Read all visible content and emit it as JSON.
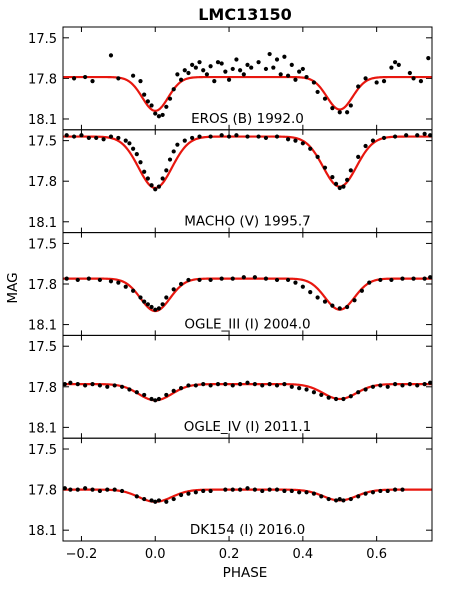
{
  "chart_data": {
    "type": "scatter",
    "title": "LMC13150",
    "xlabel": "PHASE",
    "ylabel": "MAG",
    "xlim": [
      -0.25,
      0.75
    ],
    "ylim_inverted": [
      18.18,
      17.42
    ],
    "x_ticks": [
      -0.2,
      0.0,
      0.2,
      0.4,
      0.6
    ],
    "x_tick_labels": [
      "−0.2",
      "0.0",
      "0.2",
      "0.4",
      "0.6"
    ],
    "y_ticks": [
      17.5,
      17.8,
      18.1
    ],
    "y_tick_labels": [
      "17.5",
      "17.8",
      "18.1"
    ],
    "grid": false,
    "model_color": "#e8170f",
    "point_color": "#000000",
    "panels": [
      {
        "label": "EROS (B) 1992.0",
        "model": {
          "base": 17.79,
          "depth1": 0.25,
          "width1": 0.035,
          "depth2": 0.24,
          "width2": 0.035
        },
        "points": [
          [
            -0.22,
            17.8
          ],
          [
            -0.19,
            17.79
          ],
          [
            -0.17,
            17.82
          ],
          [
            -0.12,
            17.63
          ],
          [
            -0.1,
            17.8
          ],
          [
            -0.06,
            17.78
          ],
          [
            -0.04,
            17.82
          ],
          [
            -0.03,
            17.92
          ],
          [
            -0.02,
            17.97
          ],
          [
            -0.01,
            18.0
          ],
          [
            0.0,
            18.06
          ],
          [
            0.01,
            18.08
          ],
          [
            0.02,
            18.07
          ],
          [
            0.03,
            18.01
          ],
          [
            0.04,
            17.95
          ],
          [
            0.05,
            17.88
          ],
          [
            0.06,
            17.77
          ],
          [
            0.07,
            17.81
          ],
          [
            0.08,
            17.74
          ],
          [
            0.09,
            17.76
          ],
          [
            0.1,
            17.7
          ],
          [
            0.11,
            17.72
          ],
          [
            0.12,
            17.68
          ],
          [
            0.13,
            17.74
          ],
          [
            0.14,
            17.77
          ],
          [
            0.15,
            17.71
          ],
          [
            0.16,
            17.82
          ],
          [
            0.17,
            17.68
          ],
          [
            0.18,
            17.69
          ],
          [
            0.19,
            17.75
          ],
          [
            0.2,
            17.81
          ],
          [
            0.21,
            17.73
          ],
          [
            0.22,
            17.66
          ],
          [
            0.23,
            17.74
          ],
          [
            0.24,
            17.77
          ],
          [
            0.25,
            17.7
          ],
          [
            0.26,
            17.72
          ],
          [
            0.28,
            17.68
          ],
          [
            0.3,
            17.73
          ],
          [
            0.31,
            17.62
          ],
          [
            0.32,
            17.72
          ],
          [
            0.33,
            17.66
          ],
          [
            0.34,
            17.77
          ],
          [
            0.35,
            17.64
          ],
          [
            0.36,
            17.78
          ],
          [
            0.37,
            17.7
          ],
          [
            0.38,
            17.81
          ],
          [
            0.39,
            17.75
          ],
          [
            0.4,
            17.73
          ],
          [
            0.41,
            17.79
          ],
          [
            0.43,
            17.83
          ],
          [
            0.44,
            17.9
          ],
          [
            0.46,
            17.95
          ],
          [
            0.48,
            18.02
          ],
          [
            0.5,
            18.05
          ],
          [
            0.52,
            18.05
          ],
          [
            0.53,
            18.0
          ],
          [
            0.55,
            17.86
          ],
          [
            0.57,
            17.8
          ],
          [
            0.6,
            17.83
          ],
          [
            0.62,
            17.82
          ],
          [
            0.64,
            17.72
          ],
          [
            0.65,
            17.68
          ],
          [
            0.66,
            17.7
          ],
          [
            0.69,
            17.76
          ],
          [
            0.7,
            17.8
          ],
          [
            0.72,
            17.82
          ],
          [
            0.74,
            17.65
          ]
        ]
      },
      {
        "label": "MACHO (V) 1995.7",
        "model": {
          "base": 17.47,
          "depth1": 0.38,
          "width1": 0.045,
          "depth2": 0.37,
          "width2": 0.045
        },
        "points": [
          [
            -0.24,
            17.46
          ],
          [
            -0.22,
            17.47
          ],
          [
            -0.2,
            17.46
          ],
          [
            -0.18,
            17.48
          ],
          [
            -0.16,
            17.48
          ],
          [
            -0.14,
            17.49
          ],
          [
            -0.12,
            17.47
          ],
          [
            -0.1,
            17.48
          ],
          [
            -0.08,
            17.5
          ],
          [
            -0.07,
            17.52
          ],
          [
            -0.06,
            17.56
          ],
          [
            -0.05,
            17.6
          ],
          [
            -0.04,
            17.66
          ],
          [
            -0.03,
            17.73
          ],
          [
            -0.02,
            17.78
          ],
          [
            -0.01,
            17.83
          ],
          [
            0.0,
            17.86
          ],
          [
            0.01,
            17.84
          ],
          [
            0.02,
            17.78
          ],
          [
            0.03,
            17.72
          ],
          [
            0.04,
            17.64
          ],
          [
            0.05,
            17.58
          ],
          [
            0.06,
            17.53
          ],
          [
            0.08,
            17.5
          ],
          [
            0.1,
            17.48
          ],
          [
            0.12,
            17.47
          ],
          [
            0.15,
            17.47
          ],
          [
            0.18,
            17.46
          ],
          [
            0.2,
            17.47
          ],
          [
            0.22,
            17.46
          ],
          [
            0.25,
            17.47
          ],
          [
            0.28,
            17.47
          ],
          [
            0.3,
            17.48
          ],
          [
            0.33,
            17.47
          ],
          [
            0.36,
            17.49
          ],
          [
            0.38,
            17.5
          ],
          [
            0.4,
            17.52
          ],
          [
            0.42,
            17.56
          ],
          [
            0.44,
            17.62
          ],
          [
            0.46,
            17.7
          ],
          [
            0.48,
            17.77
          ],
          [
            0.49,
            17.82
          ],
          [
            0.5,
            17.85
          ],
          [
            0.51,
            17.84
          ],
          [
            0.52,
            17.79
          ],
          [
            0.53,
            17.72
          ],
          [
            0.55,
            17.62
          ],
          [
            0.57,
            17.54
          ],
          [
            0.59,
            17.5
          ],
          [
            0.62,
            17.48
          ],
          [
            0.65,
            17.47
          ],
          [
            0.68,
            17.46
          ],
          [
            0.71,
            17.46
          ],
          [
            0.73,
            17.45
          ],
          [
            0.745,
            17.46
          ]
        ]
      },
      {
        "label": "OGLE_III (I) 2004.0",
        "model": {
          "base": 17.76,
          "depth1": 0.24,
          "width1": 0.04,
          "depth2": 0.23,
          "width2": 0.04
        },
        "points": [
          [
            -0.24,
            17.76
          ],
          [
            -0.21,
            17.77
          ],
          [
            -0.18,
            17.76
          ],
          [
            -0.15,
            17.77
          ],
          [
            -0.12,
            17.78
          ],
          [
            -0.1,
            17.79
          ],
          [
            -0.08,
            17.82
          ],
          [
            -0.06,
            17.85
          ],
          [
            -0.04,
            17.9
          ],
          [
            -0.03,
            17.93
          ],
          [
            -0.02,
            17.95
          ],
          [
            -0.01,
            17.97
          ],
          [
            0.0,
            17.99
          ],
          [
            0.01,
            17.98
          ],
          [
            0.02,
            17.95
          ],
          [
            0.03,
            17.9
          ],
          [
            0.05,
            17.84
          ],
          [
            0.07,
            17.8
          ],
          [
            0.09,
            17.77
          ],
          [
            0.12,
            17.77
          ],
          [
            0.15,
            17.77
          ],
          [
            0.18,
            17.76
          ],
          [
            0.21,
            17.76
          ],
          [
            0.24,
            17.75
          ],
          [
            0.27,
            17.75
          ],
          [
            0.3,
            17.76
          ],
          [
            0.33,
            17.77
          ],
          [
            0.36,
            17.77
          ],
          [
            0.38,
            17.79
          ],
          [
            0.4,
            17.82
          ],
          [
            0.42,
            17.86
          ],
          [
            0.44,
            17.9
          ],
          [
            0.46,
            17.93
          ],
          [
            0.48,
            17.96
          ],
          [
            0.5,
            17.98
          ],
          [
            0.52,
            17.97
          ],
          [
            0.54,
            17.92
          ],
          [
            0.56,
            17.85
          ],
          [
            0.58,
            17.79
          ],
          [
            0.61,
            17.77
          ],
          [
            0.64,
            17.77
          ],
          [
            0.67,
            17.76
          ],
          [
            0.7,
            17.76
          ],
          [
            0.73,
            17.76
          ],
          [
            0.745,
            17.75
          ]
        ]
      },
      {
        "label": "OGLE_IV (I) 2011.1",
        "model": {
          "base": 17.78,
          "depth1": 0.12,
          "width1": 0.045,
          "depth2": 0.11,
          "width2": 0.045
        },
        "points": [
          [
            -0.245,
            17.78
          ],
          [
            -0.23,
            17.77
          ],
          [
            -0.21,
            17.78
          ],
          [
            -0.19,
            17.79
          ],
          [
            -0.17,
            17.78
          ],
          [
            -0.15,
            17.79
          ],
          [
            -0.13,
            17.8
          ],
          [
            -0.11,
            17.79
          ],
          [
            -0.09,
            17.8
          ],
          [
            -0.07,
            17.82
          ],
          [
            -0.05,
            17.84
          ],
          [
            -0.03,
            17.86
          ],
          [
            -0.01,
            17.89
          ],
          [
            0.0,
            17.9
          ],
          [
            0.01,
            17.89
          ],
          [
            0.03,
            17.86
          ],
          [
            0.05,
            17.83
          ],
          [
            0.07,
            17.81
          ],
          [
            0.09,
            17.79
          ],
          [
            0.11,
            17.79
          ],
          [
            0.13,
            17.78
          ],
          [
            0.15,
            17.79
          ],
          [
            0.17,
            17.78
          ],
          [
            0.19,
            17.78
          ],
          [
            0.21,
            17.79
          ],
          [
            0.23,
            17.78
          ],
          [
            0.25,
            17.77
          ],
          [
            0.27,
            17.78
          ],
          [
            0.29,
            17.79
          ],
          [
            0.31,
            17.78
          ],
          [
            0.33,
            17.79
          ],
          [
            0.35,
            17.78
          ],
          [
            0.37,
            17.8
          ],
          [
            0.39,
            17.81
          ],
          [
            0.41,
            17.82
          ],
          [
            0.43,
            17.84
          ],
          [
            0.45,
            17.86
          ],
          [
            0.47,
            17.88
          ],
          [
            0.49,
            17.89
          ],
          [
            0.51,
            17.89
          ],
          [
            0.53,
            17.87
          ],
          [
            0.55,
            17.84
          ],
          [
            0.57,
            17.82
          ],
          [
            0.59,
            17.8
          ],
          [
            0.61,
            17.79
          ],
          [
            0.63,
            17.8
          ],
          [
            0.65,
            17.78
          ],
          [
            0.67,
            17.79
          ],
          [
            0.69,
            17.78
          ],
          [
            0.71,
            17.79
          ],
          [
            0.73,
            17.78
          ],
          [
            0.745,
            17.77
          ]
        ]
      },
      {
        "label": "DK154 (I) 2016.0",
        "model": {
          "base": 17.8,
          "depth1": 0.09,
          "width1": 0.045,
          "depth2": 0.08,
          "width2": 0.045
        },
        "points": [
          [
            -0.245,
            17.79
          ],
          [
            -0.23,
            17.8
          ],
          [
            -0.21,
            17.8
          ],
          [
            -0.19,
            17.79
          ],
          [
            -0.17,
            17.8
          ],
          [
            -0.15,
            17.81
          ],
          [
            -0.13,
            17.8
          ],
          [
            -0.11,
            17.8
          ],
          [
            -0.09,
            17.81
          ],
          [
            -0.05,
            17.85
          ],
          [
            -0.03,
            17.87
          ],
          [
            -0.01,
            17.88
          ],
          [
            0.0,
            17.89
          ],
          [
            0.01,
            17.88
          ],
          [
            0.03,
            17.89
          ],
          [
            0.05,
            17.87
          ],
          [
            0.07,
            17.84
          ],
          [
            0.09,
            17.83
          ],
          [
            0.11,
            17.82
          ],
          [
            0.13,
            17.81
          ],
          [
            0.15,
            17.81
          ],
          [
            0.19,
            17.8
          ],
          [
            0.21,
            17.8
          ],
          [
            0.23,
            17.8
          ],
          [
            0.25,
            17.79
          ],
          [
            0.27,
            17.8
          ],
          [
            0.29,
            17.81
          ],
          [
            0.31,
            17.8
          ],
          [
            0.33,
            17.8
          ],
          [
            0.35,
            17.81
          ],
          [
            0.37,
            17.81
          ],
          [
            0.39,
            17.82
          ],
          [
            0.41,
            17.82
          ],
          [
            0.43,
            17.83
          ],
          [
            0.45,
            17.85
          ],
          [
            0.47,
            17.87
          ],
          [
            0.49,
            17.88
          ],
          [
            0.5,
            17.87
          ],
          [
            0.51,
            17.88
          ],
          [
            0.53,
            17.87
          ],
          [
            0.55,
            17.85
          ],
          [
            0.57,
            17.83
          ],
          [
            0.59,
            17.82
          ],
          [
            0.61,
            17.81
          ],
          [
            0.63,
            17.81
          ],
          [
            0.65,
            17.8
          ],
          [
            0.67,
            17.8
          ]
        ]
      }
    ]
  }
}
